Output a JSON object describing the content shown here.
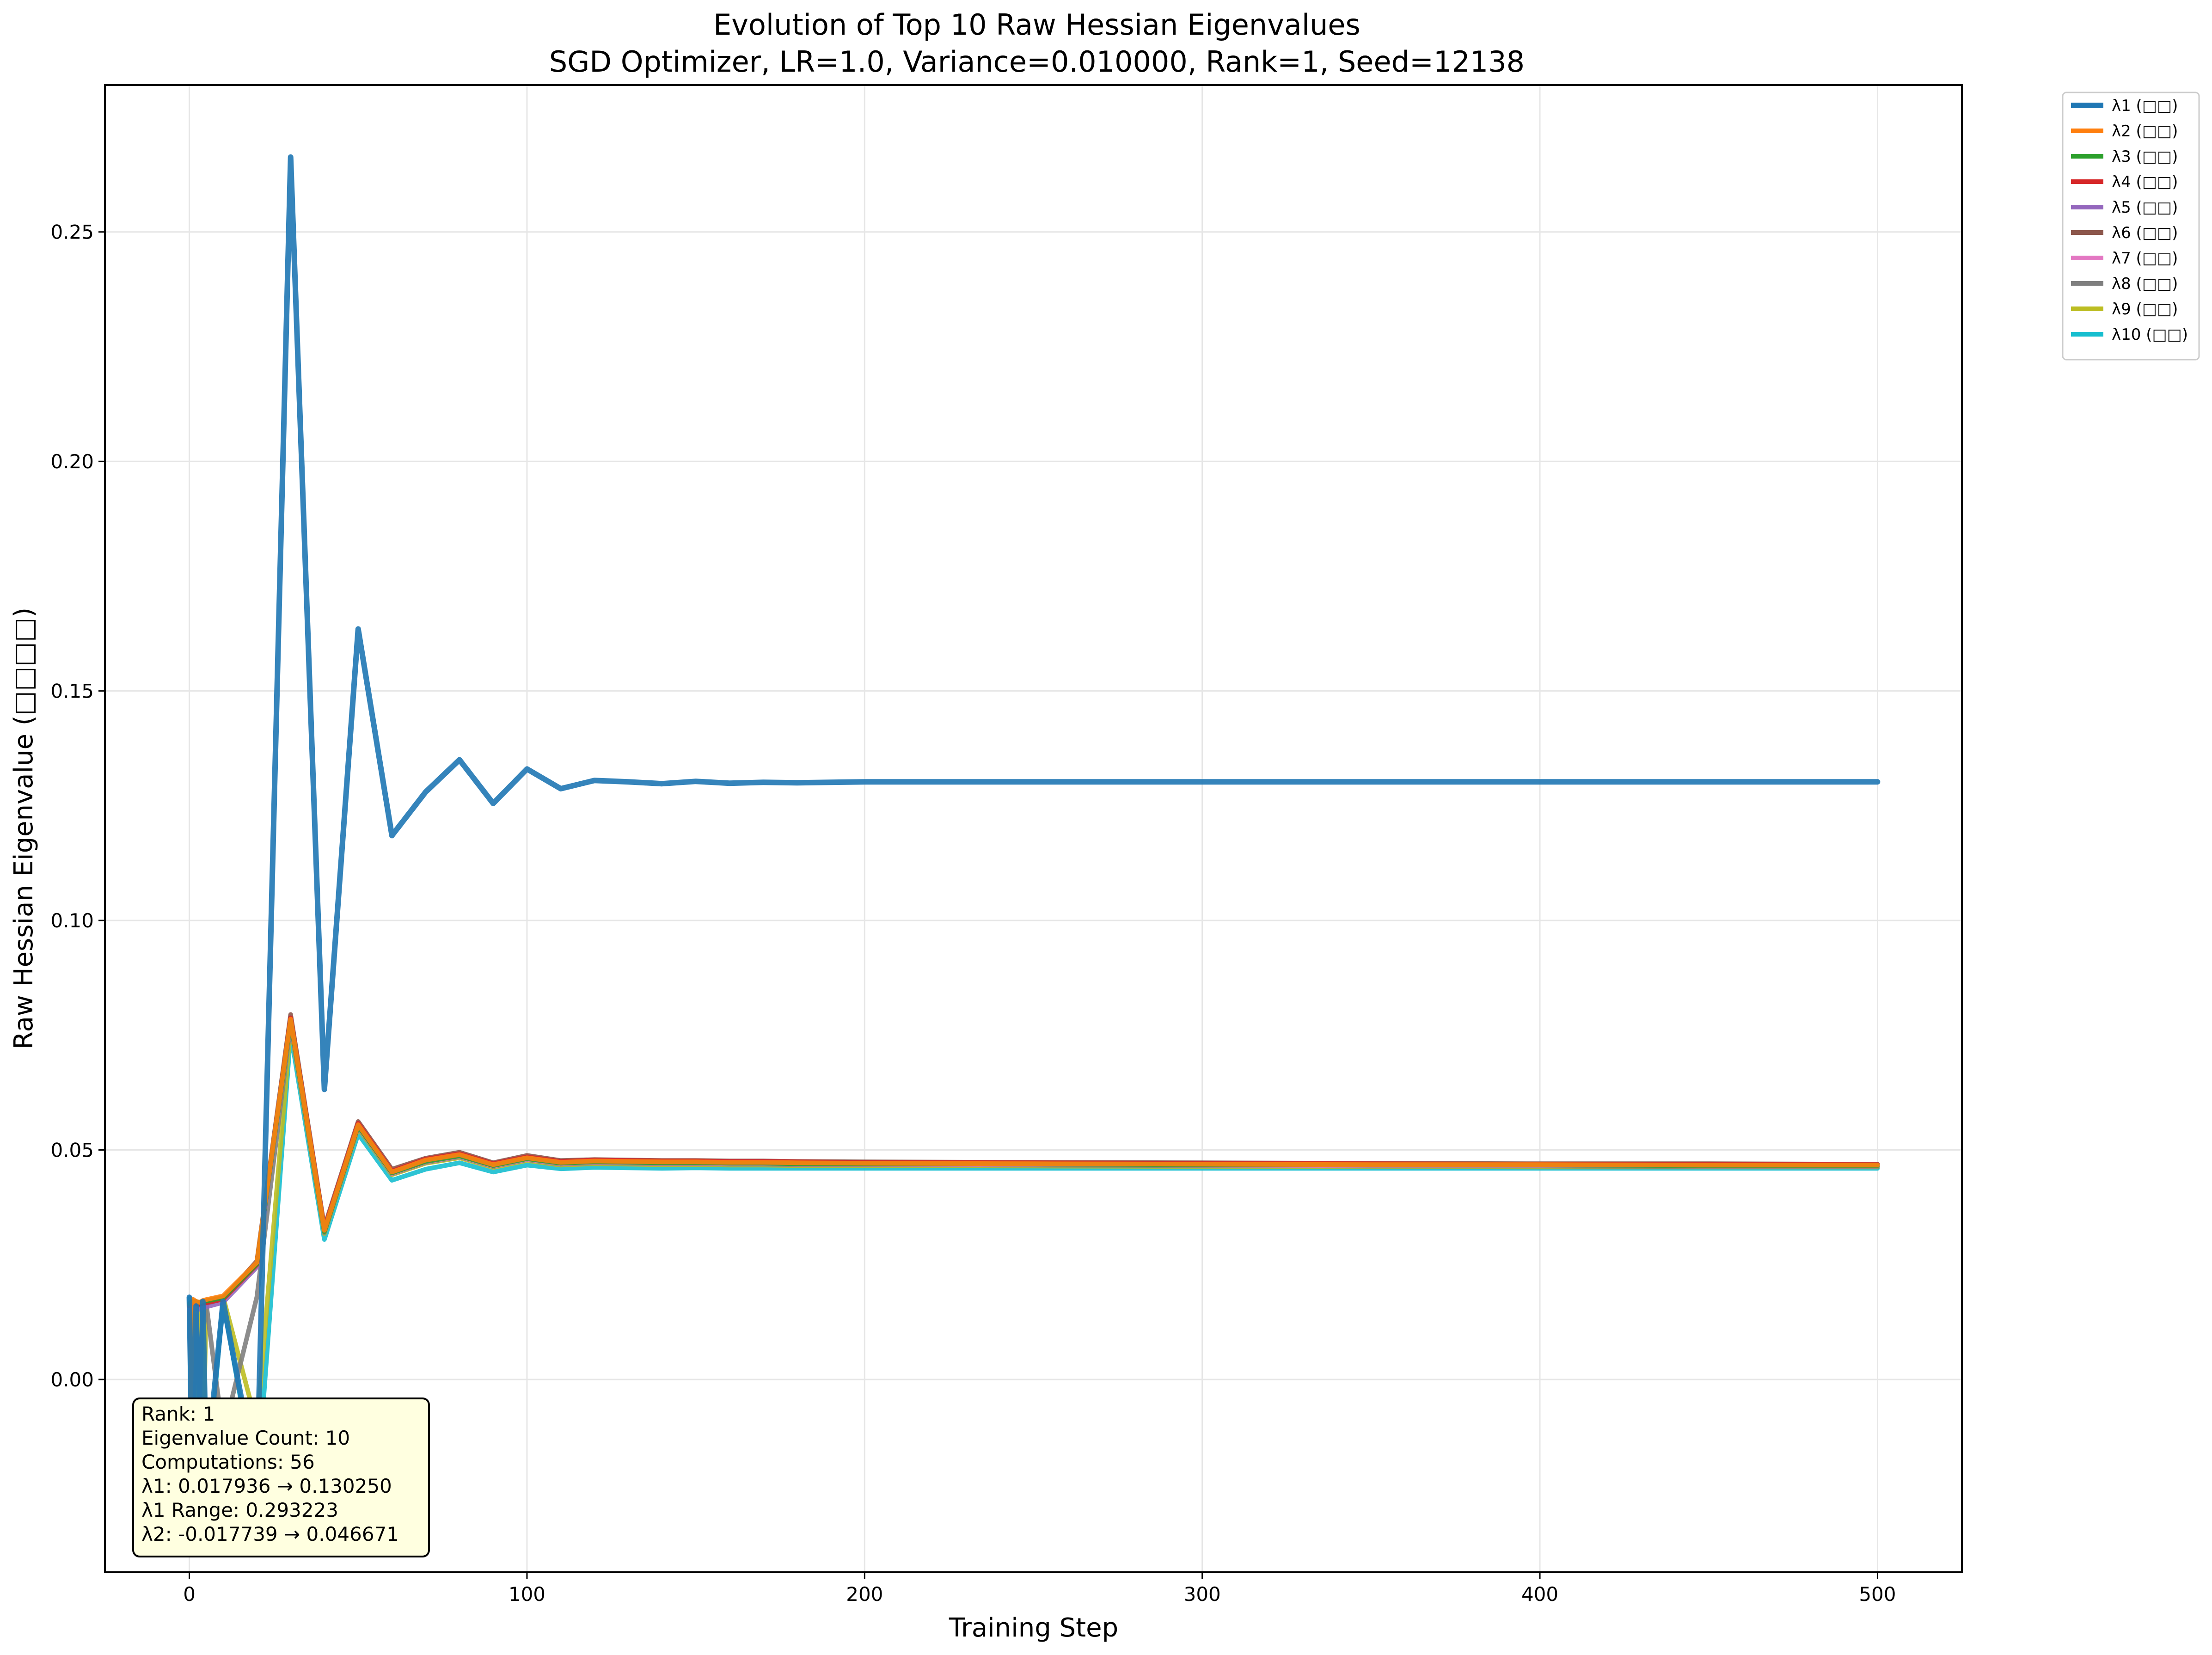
{
  "chart_data": {
    "type": "line",
    "title": "Evolution of Top 10 Raw Hessian Eigenvalues",
    "subtitle": "SGD Optimizer, LR=1.0, Variance=0.010000, Rank=1, Seed=12138",
    "xlabel": "Training Step",
    "ylabel": "Raw Hessian Eigenvalue (□□□□)",
    "xlim": [
      -25,
      525
    ],
    "ylim": [
      -0.042,
      0.282
    ],
    "xticks": [
      0,
      100,
      200,
      300,
      400,
      500
    ],
    "yticks": [
      0.0,
      0.05,
      0.1,
      0.15,
      0.2,
      0.25
    ],
    "ytick_labels": [
      "0.00",
      "0.05",
      "0.10",
      "0.15",
      "0.20",
      "0.25"
    ],
    "grid": true,
    "legend_position": "outside-top-right",
    "annotation_box": {
      "position": "bottom-left",
      "lines": [
        "Rank: 1",
        "Eigenvalue Count: 10",
        "Computations: 56",
        "λ1: 0.017936 → 0.130250",
        "λ1 Range: 0.293223",
        "λ2: -0.017739 → 0.046671"
      ]
    },
    "series": [
      {
        "name": "λ1 (□□)",
        "color": "#1f77b4",
        "x": [
          0,
          1,
          2,
          3,
          4,
          5,
          10,
          20,
          30,
          40,
          50,
          60,
          70,
          80,
          90,
          100,
          110,
          120,
          130,
          140,
          150,
          160,
          170,
          180,
          200,
          250,
          300,
          350,
          400,
          450,
          500
        ],
        "values": [
          0.0179,
          -0.028,
          0.016,
          -0.025,
          0.017,
          -0.02,
          0.017,
          -0.022,
          0.2663,
          0.0632,
          0.1635,
          0.1185,
          0.128,
          0.135,
          0.1255,
          0.133,
          0.1287,
          0.1305,
          0.1302,
          0.1298,
          0.1303,
          0.1299,
          0.1301,
          0.13,
          0.1302,
          0.1302,
          0.1302,
          0.1302,
          0.1302,
          0.1302,
          0.1302
        ]
      },
      {
        "name": "λ2 (□□)",
        "color": "#ff7f0e",
        "x": [
          0,
          1,
          2,
          3,
          4,
          5,
          10,
          20,
          30,
          40,
          50,
          60,
          70,
          80,
          90,
          100,
          110,
          120,
          130,
          140,
          150,
          160,
          170,
          180,
          200,
          250,
          300,
          350,
          400,
          450,
          500
        ],
        "values": [
          -0.0177,
          0.0175,
          0.017,
          0.0168,
          0.0172,
          0.0174,
          0.0182,
          0.0255,
          0.0785,
          0.0325,
          0.0555,
          0.0452,
          0.0478,
          0.049,
          0.0468,
          0.0483,
          0.0473,
          0.0476,
          0.0475,
          0.0474,
          0.0474,
          0.0473,
          0.0473,
          0.0472,
          0.0471,
          0.047,
          0.0469,
          0.0468,
          0.0468,
          0.0467,
          0.0467
        ]
      },
      {
        "name": "λ3 (□□)",
        "color": "#2ca02c",
        "x": [
          0,
          1,
          2,
          3,
          4,
          5,
          10,
          20,
          30,
          40,
          50,
          60,
          70,
          80,
          90,
          100,
          110,
          120,
          130,
          140,
          150,
          160,
          170,
          180,
          200,
          250,
          300,
          350,
          400,
          450,
          500
        ],
        "values": [
          0.0165,
          0.0172,
          0.017,
          0.0168,
          0.017,
          0.0171,
          0.0178,
          0.0252,
          0.078,
          0.0322,
          0.0552,
          0.045,
          0.0475,
          0.0487,
          0.0466,
          0.0481,
          0.0471,
          0.0474,
          0.0473,
          0.0472,
          0.0472,
          0.0471,
          0.0471,
          0.047,
          0.047,
          0.0469,
          0.0468,
          0.0467,
          0.0467,
          0.0466,
          0.0466
        ]
      },
      {
        "name": "λ4 (□□)",
        "color": "#d62728",
        "x": [
          0,
          1,
          2,
          3,
          4,
          5,
          10,
          20,
          30,
          40,
          50,
          60,
          70,
          80,
          90,
          100,
          110,
          120,
          130,
          140,
          150,
          160,
          170,
          180,
          200,
          250,
          300,
          350,
          400,
          450,
          500
        ],
        "values": [
          0.016,
          0.0168,
          0.0166,
          0.0164,
          0.0166,
          0.0167,
          0.0175,
          0.025,
          0.0788,
          0.0328,
          0.0558,
          0.0454,
          0.048,
          0.0492,
          0.047,
          0.0485,
          0.0475,
          0.0478,
          0.0477,
          0.0476,
          0.0476,
          0.0475,
          0.0475,
          0.0474,
          0.0473,
          0.0472,
          0.0471,
          0.047,
          0.0469,
          0.0469,
          0.0468
        ]
      },
      {
        "name": "λ5 (□□)",
        "color": "#9467bd",
        "x": [
          0,
          1,
          2,
          3,
          4,
          5,
          10,
          20,
          30,
          40,
          50,
          60,
          70,
          80,
          90,
          100,
          110,
          120,
          130,
          140,
          150,
          160,
          170,
          180,
          200,
          250,
          300,
          350,
          400,
          450,
          500
        ],
        "values": [
          0.0152,
          0.0158,
          0.0155,
          0.0153,
          0.0156,
          0.0158,
          0.0168,
          0.0245,
          0.0782,
          0.0326,
          0.0556,
          0.0452,
          0.0478,
          0.049,
          0.0468,
          0.0483,
          0.0473,
          0.0476,
          0.0475,
          0.0474,
          0.0474,
          0.0473,
          0.0473,
          0.0472,
          0.0471,
          0.047,
          0.0469,
          0.0468,
          0.0468,
          0.0467,
          0.0467
        ]
      },
      {
        "name": "λ6 (□□)",
        "color": "#8c564b",
        "x": [
          0,
          1,
          2,
          3,
          4,
          5,
          10,
          20,
          30,
          40,
          50,
          60,
          70,
          80,
          90,
          100,
          110,
          120,
          130,
          140,
          150,
          160,
          170,
          180,
          200,
          250,
          300,
          350,
          400,
          450,
          500
        ],
        "values": [
          0.0158,
          0.0165,
          0.0162,
          0.016,
          0.0163,
          0.0165,
          0.0176,
          0.0258,
          0.0795,
          0.0332,
          0.0562,
          0.0458,
          0.0482,
          0.0495,
          0.0472,
          0.0488,
          0.0477,
          0.0479,
          0.0478,
          0.0477,
          0.0477,
          0.0476,
          0.0476,
          0.0475,
          0.0474,
          0.0473,
          0.0472,
          0.0471,
          0.047,
          0.047,
          0.0469
        ]
      },
      {
        "name": "λ7 (□□)",
        "color": "#e377c2",
        "x": [
          0,
          1,
          2,
          3,
          4,
          5,
          10,
          20,
          30,
          40,
          50,
          60,
          70,
          80,
          90,
          100,
          110,
          120,
          130,
          140,
          150,
          160,
          170,
          180,
          200,
          250,
          300,
          350,
          400,
          450,
          500
        ],
        "values": [
          0.0163,
          0.017,
          0.0168,
          0.0166,
          0.0168,
          0.017,
          0.0177,
          0.0251,
          0.0778,
          0.0322,
          0.0551,
          0.0449,
          0.0474,
          0.0486,
          0.0465,
          0.048,
          0.047,
          0.0473,
          0.0472,
          0.0471,
          0.0471,
          0.047,
          0.047,
          0.0469,
          0.0469,
          0.0468,
          0.0467,
          0.0466,
          0.0466,
          0.0465,
          0.0465
        ]
      },
      {
        "name": "λ8 (□□)",
        "color": "#7f7f7f",
        "x": [
          0,
          1,
          2,
          3,
          4,
          5,
          10,
          20,
          30,
          40,
          50,
          60,
          70,
          80,
          90,
          100,
          110,
          120,
          130,
          140,
          150,
          160,
          170,
          180,
          200,
          250,
          300,
          350,
          400,
          450,
          500
        ],
        "values": [
          0.0162,
          -0.012,
          0.015,
          -0.005,
          0.016,
          0.0165,
          -0.012,
          0.018,
          0.0775,
          0.032,
          0.055,
          0.0448,
          0.0473,
          0.0485,
          0.0464,
          0.0479,
          0.0469,
          0.0472,
          0.0471,
          0.047,
          0.047,
          0.0469,
          0.0469,
          0.0468,
          0.0468,
          0.0467,
          0.0466,
          0.0465,
          0.0465,
          0.0464,
          0.0464
        ]
      },
      {
        "name": "λ9 (□□)",
        "color": "#bcbd22",
        "x": [
          0,
          1,
          2,
          3,
          4,
          5,
          10,
          20,
          30,
          40,
          50,
          60,
          70,
          80,
          90,
          100,
          110,
          120,
          130,
          140,
          150,
          160,
          170,
          180,
          200,
          250,
          300,
          350,
          400,
          450,
          500
        ],
        "values": [
          0.0155,
          0.016,
          -0.018,
          0.0165,
          -0.02,
          0.0172,
          0.018,
          -0.01,
          0.0772,
          0.0318,
          0.0548,
          0.0446,
          0.0471,
          0.0483,
          0.0462,
          0.0477,
          0.0467,
          0.047,
          0.0469,
          0.0468,
          0.0468,
          0.0467,
          0.0467,
          0.0466,
          0.0466,
          0.0465,
          0.0464,
          0.0464,
          0.0463,
          0.0463,
          0.0463
        ]
      },
      {
        "name": "λ10 (□□)",
        "color": "#17becf",
        "x": [
          0,
          1,
          2,
          3,
          4,
          5,
          10,
          20,
          30,
          40,
          50,
          60,
          70,
          80,
          90,
          100,
          110,
          120,
          130,
          140,
          150,
          160,
          170,
          180,
          200,
          250,
          300,
          350,
          400,
          450,
          500
        ],
        "values": [
          0.0178,
          -0.03,
          0.014,
          -0.028,
          0.015,
          -0.024,
          0.017,
          -0.024,
          0.0755,
          0.0305,
          0.0535,
          0.0434,
          0.0458,
          0.0472,
          0.0452,
          0.0467,
          0.0459,
          0.0462,
          0.0461,
          0.046,
          0.0461,
          0.046,
          0.046,
          0.046,
          0.046,
          0.046,
          0.046,
          0.046,
          0.046,
          0.046,
          0.046
        ]
      }
    ]
  }
}
